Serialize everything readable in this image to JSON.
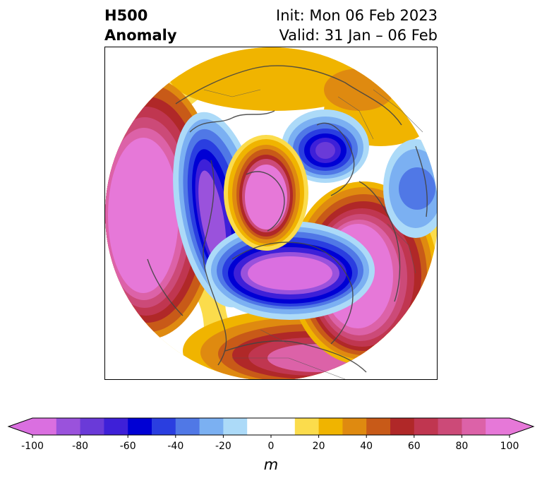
{
  "title": {
    "left_line1": "H500",
    "left_line2": "Anomaly",
    "right_line1": "Init: Mon 06 Feb 2023",
    "right_line2": "Valid: 31 Jan – 06 Feb"
  },
  "colorbar": {
    "units": "m",
    "min": -100,
    "max": 100,
    "step": 10,
    "extend": "both",
    "tick_values": [
      -100,
      -80,
      -60,
      -40,
      -20,
      0,
      20,
      40,
      60,
      80,
      100
    ],
    "tick_labels": [
      "-100",
      "-80",
      "-60",
      "-40",
      "-20",
      "0",
      "20",
      "40",
      "60",
      "80",
      "100"
    ],
    "colors": [
      "#da6fe0",
      "#9a52dc",
      "#6a3ad8",
      "#3e20d8",
      "#0000d4",
      "#2a3ee0",
      "#5078e6",
      "#7bb0f2",
      "#acdaf8",
      "#ffffff",
      "#ffffff",
      "#fbdc4c",
      "#f0b400",
      "#df8a10",
      "#c85a18",
      "#b02828",
      "#c03650",
      "#cc4a78",
      "#dc62a8",
      "#e678d8"
    ]
  },
  "map": {
    "projection": "north-polar-stereographic",
    "field": "500 hPa geopotential height anomaly"
  }
}
